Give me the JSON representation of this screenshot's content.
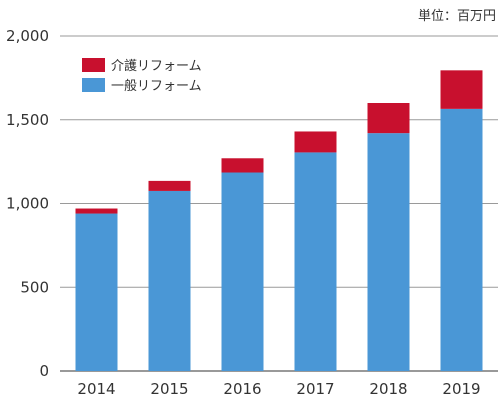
{
  "chart_data": {
    "type": "bar",
    "stacked": true,
    "unit_label": "単位：百万円",
    "categories": [
      "2014",
      "2015",
      "2016",
      "2017",
      "2018",
      "2019"
    ],
    "series": [
      {
        "name": "一般リフォーム",
        "color": "#4a97d6",
        "values": [
          940,
          1075,
          1185,
          1305,
          1420,
          1565
        ]
      },
      {
        "name": "介護リフォーム",
        "color": "#c8102e",
        "values": [
          30,
          60,
          85,
          125,
          180,
          230
        ]
      }
    ],
    "legend_order": [
      1,
      0
    ],
    "legend_position": "top-left",
    "ylim": [
      0,
      2000
    ],
    "yticks": [
      0,
      500,
      1000,
      1500,
      2000
    ],
    "ytick_labels": [
      "0",
      "500",
      "1,000",
      "1,500",
      "2,000"
    ],
    "grid": true
  }
}
